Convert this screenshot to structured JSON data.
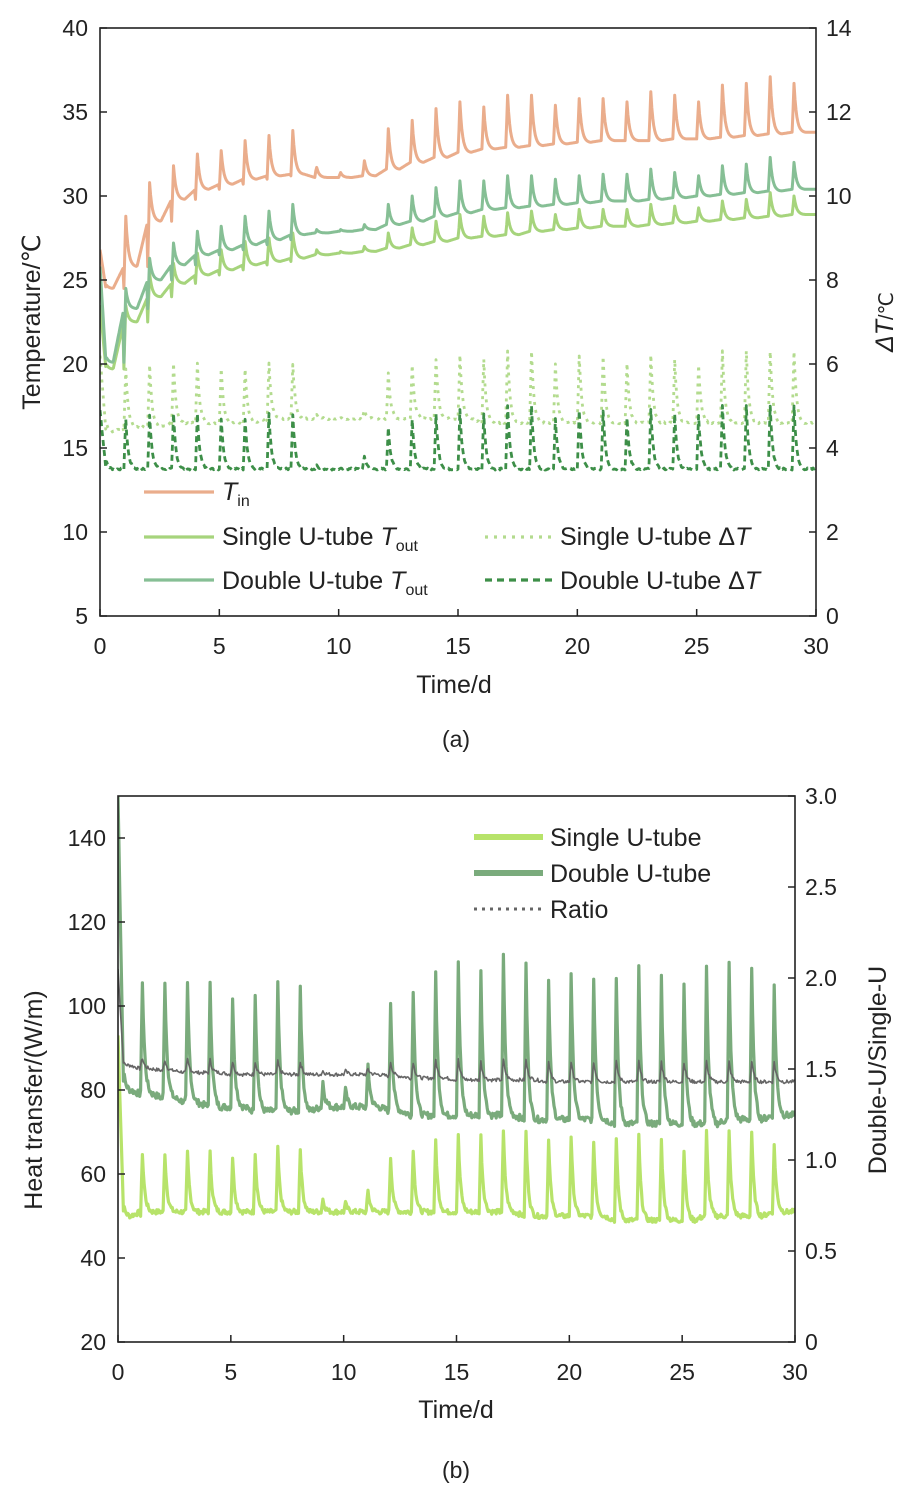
{
  "chart_data": [
    {
      "panel": "a",
      "type": "line",
      "caption": "(a)",
      "xlabel": "Time/d",
      "ylabel": "Temperature/℃",
      "y2label_italic": "ΔT",
      "y2label_unit": "/℃",
      "xlim": [
        0,
        30
      ],
      "ylim": [
        5,
        40
      ],
      "y2lim": [
        0,
        14
      ],
      "xticks": [
        "0",
        "5",
        "10",
        "15",
        "20",
        "25",
        "30"
      ],
      "yticks": [
        "5",
        "10",
        "15",
        "20",
        "25",
        "30",
        "35",
        "40"
      ],
      "y2ticks": [
        "0",
        "2",
        "4",
        "6",
        "8",
        "10",
        "12",
        "14"
      ],
      "colors": {
        "tin": "#eaad8c",
        "single": "#a6d47c",
        "double": "#86bf95",
        "single_dt": "#b3db8e",
        "double_dt": "#3d8f48"
      },
      "legend": {
        "tin_main": "T",
        "tin_sub": "in",
        "single_out_text": "Single U-tube ",
        "double_out_text": "Double U-tube ",
        "out_main": "T",
        "out_sub": "out",
        "single_dt_text": "Single U-tube Δ",
        "double_dt_text": "Double U-tube Δ",
        "dt_main": "T"
      },
      "series": [
        {
          "name": "T_in",
          "axis": "left",
          "daily_peak": [
            25.8,
            28.8,
            30.8,
            31.8,
            32.5,
            32.7,
            33.3,
            33.6,
            33.9,
            31.7,
            31.4,
            32.1,
            34.0,
            34.5,
            35.2,
            35.6,
            35.3,
            36.0,
            36.0,
            35.4,
            35.8,
            35.8,
            35.6,
            36.2,
            36.0,
            35.6,
            36.6,
            36.7,
            37.1,
            36.7
          ],
          "daily_base": [
            24.5,
            25.8,
            28.5,
            29.8,
            30.4,
            30.7,
            31.0,
            31.2,
            31.3,
            31.1,
            31.1,
            31.2,
            31.6,
            32.0,
            32.3,
            32.6,
            32.8,
            32.9,
            33.0,
            33.1,
            33.2,
            33.3,
            33.3,
            33.3,
            33.4,
            33.4,
            33.5,
            33.6,
            33.7,
            33.8
          ],
          "start": 26.8
        },
        {
          "name": "Single U-tube T_out",
          "axis": "left",
          "daily_peak": [
            21.5,
            23.5,
            25.4,
            26.0,
            26.6,
            26.8,
            27.3,
            27.5,
            27.8,
            26.8,
            26.7,
            27.0,
            27.8,
            28.1,
            28.5,
            28.9,
            28.8,
            29.0,
            29.1,
            28.9,
            29.2,
            29.2,
            29.2,
            29.5,
            29.4,
            29.3,
            29.7,
            29.8,
            30.2,
            30.0
          ],
          "daily_base": [
            19.7,
            22.5,
            24.0,
            24.8,
            25.3,
            25.6,
            25.9,
            26.1,
            26.3,
            26.5,
            26.6,
            26.7,
            26.9,
            27.1,
            27.3,
            27.5,
            27.6,
            27.7,
            27.9,
            28.0,
            28.1,
            28.2,
            28.2,
            28.3,
            28.4,
            28.5,
            28.6,
            28.7,
            28.8,
            28.9
          ],
          "start": 23.5
        },
        {
          "name": "Double U-tube T_out",
          "axis": "left",
          "daily_peak": [
            22.0,
            24.5,
            26.3,
            27.2,
            27.9,
            28.2,
            28.8,
            29.1,
            29.5,
            28.0,
            28.0,
            28.3,
            29.5,
            30.0,
            30.5,
            30.9,
            30.9,
            31.2,
            31.2,
            31.0,
            31.2,
            31.3,
            31.3,
            31.6,
            31.4,
            31.2,
            31.8,
            31.9,
            32.3,
            32.0
          ],
          "daily_base": [
            20.1,
            23.3,
            25.0,
            25.9,
            26.5,
            26.8,
            27.1,
            27.4,
            27.7,
            27.8,
            27.9,
            28.0,
            28.3,
            28.5,
            28.8,
            29.0,
            29.2,
            29.3,
            29.4,
            29.5,
            29.6,
            29.7,
            29.7,
            29.8,
            29.9,
            30.0,
            30.1,
            30.2,
            30.3,
            30.4
          ],
          "start": 25.8
        },
        {
          "name": "Single U-tube ΔT",
          "axis": "right",
          "style": "dotted",
          "daily_peak": [
            5.5,
            5.9,
            6.0,
            6.0,
            6.0,
            5.9,
            5.9,
            6.0,
            6.0,
            4.8,
            4.7,
            4.9,
            5.8,
            6.0,
            6.1,
            6.2,
            6.1,
            6.3,
            6.3,
            6.0,
            6.2,
            6.2,
            6.0,
            6.2,
            6.1,
            6.0,
            6.3,
            6.3,
            6.3,
            6.3
          ],
          "daily_base": [
            4.4,
            4.5,
            4.5,
            4.6,
            4.6,
            4.6,
            4.6,
            4.7,
            4.7,
            4.7,
            4.7,
            4.7,
            4.7,
            4.7,
            4.7,
            4.7,
            4.6,
            4.6,
            4.6,
            4.6,
            4.6,
            4.6,
            4.6,
            4.6,
            4.6,
            4.6,
            4.6,
            4.6,
            4.6,
            4.6
          ],
          "start": 6.2
        },
        {
          "name": "Double U-tube ΔT",
          "axis": "right",
          "style": "dashed",
          "daily_peak": [
            4.6,
            4.7,
            4.8,
            4.8,
            4.8,
            4.7,
            4.7,
            4.8,
            4.8,
            3.6,
            3.5,
            3.8,
            4.5,
            4.7,
            4.8,
            4.9,
            4.8,
            5.0,
            5.0,
            4.7,
            4.9,
            4.9,
            4.7,
            4.9,
            4.8,
            4.8,
            5.0,
            5.0,
            5.0,
            5.0
          ],
          "daily_base": [
            3.5,
            3.5,
            3.5,
            3.5,
            3.5,
            3.5,
            3.5,
            3.5,
            3.5,
            3.5,
            3.5,
            3.5,
            3.5,
            3.5,
            3.5,
            3.5,
            3.5,
            3.5,
            3.5,
            3.5,
            3.5,
            3.5,
            3.5,
            3.5,
            3.5,
            3.5,
            3.5,
            3.5,
            3.5,
            3.5
          ],
          "start": 4.9
        }
      ]
    },
    {
      "panel": "b",
      "type": "line",
      "caption": "(b)",
      "xlabel": "Time/d",
      "ylabel": "Heat transfer/(W/m)",
      "y2label": "Double-U/Single-U",
      "xlim": [
        0,
        30
      ],
      "ylim": [
        20,
        150
      ],
      "y2lim": [
        0,
        3.0
      ],
      "xticks": [
        "0",
        "5",
        "10",
        "15",
        "20",
        "25",
        "30"
      ],
      "yticks": [
        "20",
        "40",
        "60",
        "80",
        "100",
        "120",
        "140"
      ],
      "y2ticks": [
        "0",
        "0.5",
        "1.0",
        "1.5",
        "2.0",
        "2.5",
        "3.0"
      ],
      "colors": {
        "single": "#b7e36a",
        "double": "#7aab7c",
        "ratio": "#666666"
      },
      "legend": [
        "Single U-tube",
        "Double U-tube",
        "Ratio"
      ],
      "series": [
        {
          "name": "Single U-tube",
          "axis": "left",
          "daily_peak": [
            63,
            65,
            65,
            65,
            65,
            64,
            65,
            66,
            66,
            54,
            53,
            56,
            64,
            66,
            68,
            69,
            69,
            70,
            70,
            68,
            69,
            68,
            68,
            69,
            68,
            66,
            70,
            70,
            70,
            67
          ],
          "daily_base": [
            50,
            51,
            51,
            51,
            51,
            51,
            51,
            51,
            51,
            51,
            51,
            51,
            51,
            51,
            51,
            51,
            51,
            51,
            50,
            50,
            50,
            50,
            49,
            49,
            49,
            49,
            50,
            50,
            50,
            51
          ],
          "start": 93
        },
        {
          "name": "Double U-tube",
          "axis": "left",
          "daily_peak": [
            103,
            106,
            106,
            105,
            105,
            102,
            103,
            105,
            105,
            82,
            80,
            86,
            101,
            104,
            108,
            110,
            108,
            112,
            110,
            106,
            108,
            107,
            106,
            109,
            107,
            106,
            109,
            110,
            109,
            105
          ],
          "daily_base": [
            80,
            79,
            78,
            77,
            76,
            76,
            75,
            75,
            75,
            76,
            76,
            76,
            75,
            74,
            74,
            74,
            74,
            74,
            73,
            73,
            73,
            73,
            72,
            72,
            72,
            72,
            72,
            73,
            73,
            74
          ],
          "start": 150
        },
        {
          "name": "Ratio",
          "axis": "right",
          "style": "dotted",
          "daily_peak": [
            1.58,
            1.56,
            1.55,
            1.55,
            1.55,
            1.54,
            1.54,
            1.54,
            1.54,
            1.49,
            1.49,
            1.5,
            1.54,
            1.54,
            1.55,
            1.55,
            1.54,
            1.55,
            1.55,
            1.54,
            1.54,
            1.54,
            1.54,
            1.54,
            1.54,
            1.54,
            1.54,
            1.54,
            1.54,
            1.54
          ],
          "daily_base": [
            1.52,
            1.5,
            1.49,
            1.48,
            1.48,
            1.47,
            1.47,
            1.47,
            1.47,
            1.47,
            1.47,
            1.47,
            1.46,
            1.45,
            1.45,
            1.44,
            1.44,
            1.44,
            1.44,
            1.43,
            1.43,
            1.43,
            1.43,
            1.43,
            1.43,
            1.43,
            1.43,
            1.43,
            1.43,
            1.43
          ],
          "start": 2.05
        }
      ]
    }
  ]
}
